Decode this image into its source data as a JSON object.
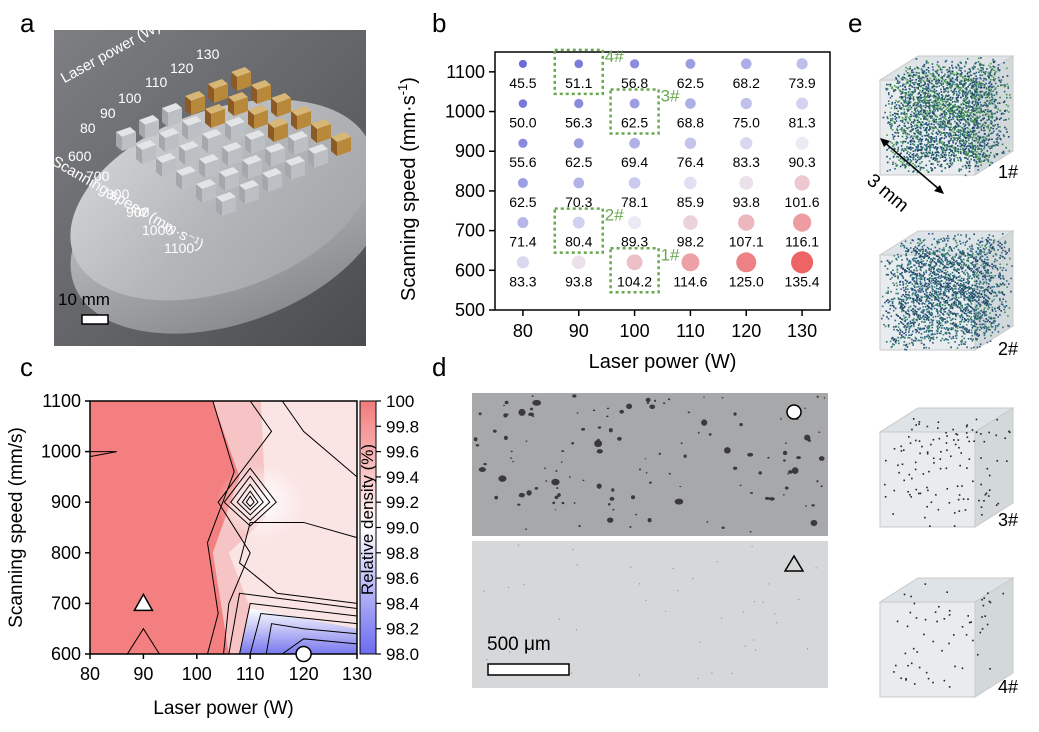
{
  "panel_letters": {
    "a": "a",
    "b": "b",
    "c": "c",
    "d": "d",
    "e": "e"
  },
  "panel_a": {
    "laser_power_label": "Laser power (W)",
    "scanning_speed_label": "Scanning speed (mm·s⁻¹)",
    "power_values": [
      "130",
      "120",
      "110",
      "100",
      "90",
      "80"
    ],
    "speed_values": [
      "600",
      "700",
      "800",
      "900",
      "1000",
      "1100"
    ],
    "scale_bar": "10 mm",
    "colors": {
      "disc": "#b9bbbe",
      "disc_edge": "#8e9094",
      "background": "#5a5d60",
      "cube": "#cfd2d6",
      "cube_gold": "#b8893a"
    }
  },
  "panel_b": {
    "ylabel": "Scanning speed (mm·s",
    "ylabel_sup": "-1",
    "ylabel_end": ")",
    "xlabel": "Laser power (W)",
    "x_ticks": [
      "80",
      "90",
      "100",
      "110",
      "120",
      "130"
    ],
    "y_ticks": [
      "500",
      "600",
      "700",
      "800",
      "900",
      "1000",
      "1100"
    ],
    "tags": [
      {
        "label": "4#",
        "power": 90,
        "speed": 1100
      },
      {
        "label": "3#",
        "power": 100,
        "speed": 1000
      },
      {
        "label": "2#",
        "power": 90,
        "speed": 700
      },
      {
        "label": "1#",
        "power": 100,
        "speed": 600
      }
    ]
  },
  "chart_data": [
    {
      "type": "scatter",
      "panel": "b",
      "x": [
        80,
        90,
        100,
        110,
        120,
        130
      ],
      "y": [
        1100,
        1000,
        900,
        800,
        700,
        600
      ],
      "xlim": [
        75,
        135
      ],
      "ylim": [
        500,
        1150
      ],
      "xlabel": "Laser power (W)",
      "ylabel": "Scanning speed (mm·s-1)",
      "values": [
        [
          "45.5",
          "51.1",
          "56.8",
          "62.5",
          "68.2",
          "73.9"
        ],
        [
          "50.0",
          "56.3",
          "62.5",
          "68.8",
          "75.0",
          "81.3"
        ],
        [
          "55.6",
          "62.5",
          "69.4",
          "76.4",
          "83.3",
          "90.3"
        ],
        [
          "62.5",
          "70.3",
          "78.1",
          "85.9",
          "93.8",
          "101.6"
        ],
        [
          "71.4",
          "80.4",
          "89.3",
          "98.2",
          "107.1",
          "116.1"
        ],
        [
          "83.3",
          "93.8",
          "104.2",
          "114.6",
          "125.0",
          "135.4"
        ]
      ],
      "colors": {
        "low": "#6b6bd6",
        "mid": "#ecebf6",
        "high": "#ee6363"
      }
    },
    {
      "type": "heatmap",
      "panel": "c",
      "xlabel": "Laser power (W)",
      "ylabel": "Scanning speed (mm/s)",
      "x_ticks": [
        "80",
        "90",
        "100",
        "110",
        "120",
        "130"
      ],
      "y_ticks": [
        "600",
        "700",
        "800",
        "900",
        "1000",
        "1100"
      ],
      "colorbar_label": "Relative density (%)",
      "colorbar_ticks": [
        "100",
        "99.8",
        "99.6",
        "99.4",
        "99.2",
        "99.0",
        "98.8",
        "98.6",
        "98.4",
        "98.2",
        "98.0"
      ],
      "colorbar_range": [
        98.0,
        100.0
      ],
      "markers": [
        {
          "shape": "triangle",
          "power": 90,
          "speed": 700
        },
        {
          "shape": "circle",
          "power": 120,
          "speed": 600
        }
      ],
      "colors": {
        "high": "#f27b7b",
        "mid": "#ffffff",
        "low": "#6b6bf0"
      }
    }
  ],
  "panel_d": {
    "scale_bar": "500 μm",
    "colors": {
      "top_bg": "#a7a8aa",
      "bottom_bg": "#d6d7d8"
    }
  },
  "panel_e": {
    "dimension_label": "3 mm",
    "labels": [
      "1#",
      "2#",
      "3#",
      "4#"
    ],
    "colors": {
      "dense_1": "#2e7a5c",
      "dense_2": "#2a6a7a"
    }
  }
}
